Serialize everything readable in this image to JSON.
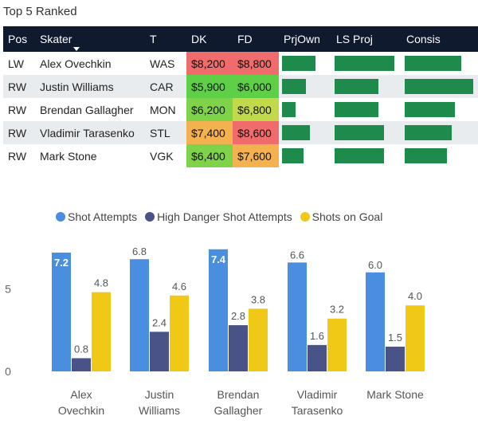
{
  "header": {
    "title": "Top 5 Ranked"
  },
  "table": {
    "columns": [
      "Pos",
      "Skater",
      "T",
      "DK",
      "FD",
      "PrjOwn",
      "LS Proj",
      "Consis"
    ],
    "rows": [
      {
        "pos": "LW",
        "skater": "Alex Ovechkin",
        "team": "WAS",
        "dk": "$8,200",
        "fd": "$8,800",
        "dk_color": "#f06b6b",
        "fd_color": "#f06b6b",
        "prjown": 0.72,
        "lsproj": 0.96,
        "consis": 0.82
      },
      {
        "pos": "RW",
        "skater": "Justin Williams",
        "team": "CAR",
        "dk": "$5,900",
        "fd": "$6,000",
        "dk_color": "#5fcf47",
        "fd_color": "#5fcf47",
        "prjown": 0.52,
        "lsproj": 0.7,
        "consis": 1.0
      },
      {
        "pos": "RW",
        "skater": "Brendan Gallagher",
        "team": "MON",
        "dk": "$6,200",
        "fd": "$6,800",
        "dk_color": "#7ed34a",
        "fd_color": "#c2d94a",
        "prjown": 0.3,
        "lsproj": 0.7,
        "consis": 0.73
      },
      {
        "pos": "RW",
        "skater": "Vladimir Tarasenko",
        "team": "STL",
        "dk": "$7,400",
        "fd": "$8,600",
        "dk_color": "#f3b14f",
        "fd_color": "#f06b6b",
        "prjown": 0.6,
        "lsproj": 0.8,
        "consis": 0.69
      },
      {
        "pos": "RW",
        "skater": "Mark Stone",
        "team": "VGK",
        "dk": "$6,400",
        "fd": "$7,600",
        "dk_color": "#7ed34a",
        "fd_color": "#f3b14f",
        "prjown": 0.47,
        "lsproj": 0.8,
        "consis": 0.62
      }
    ]
  },
  "chart_data": {
    "type": "bar",
    "categories": [
      [
        "Alex",
        "Ovechkin"
      ],
      [
        "Justin",
        "Williams"
      ],
      [
        "Brendan",
        "Gallagher"
      ],
      [
        "Vladimir",
        "Tarasenko"
      ],
      [
        "Mark Stone"
      ]
    ],
    "series": [
      {
        "name": "Shot Attempts",
        "color": "#4a8ee0",
        "values": [
          7.2,
          6.8,
          7.4,
          6.6,
          6.0
        ],
        "labels": [
          "7.2",
          "6.8",
          "7.4",
          "6.6",
          "6.0"
        ]
      },
      {
        "name": "High Danger Shot Attempts",
        "color": "#4a5388",
        "values": [
          0.8,
          2.4,
          2.8,
          1.6,
          1.5
        ],
        "labels": [
          "0.8",
          "2.4",
          "2.8",
          "1.6",
          "1.5"
        ]
      },
      {
        "name": "Shots on Goal",
        "color": "#f0c916",
        "values": [
          4.8,
          4.6,
          3.8,
          3.2,
          4.0
        ],
        "labels": [
          "4.8",
          "4.6",
          "3.8",
          "3.2",
          "4.0"
        ]
      }
    ],
    "yticks": [
      0,
      5
    ],
    "ytick_labels": [
      "0",
      "5"
    ],
    "ylim": [
      0,
      8.5
    ],
    "legend_position": "top",
    "grid": false
  }
}
